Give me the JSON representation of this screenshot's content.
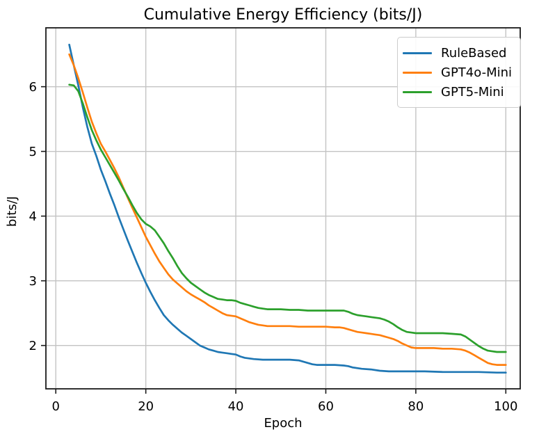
{
  "figure": {
    "background": "#ffffff",
    "grid_color": "#c3c3c3",
    "spine_color": "#1a1a1a",
    "text_color": "#000000",
    "legend_border_color": "#cccccc"
  },
  "chart_data": {
    "type": "line",
    "title": "Cumulative Energy Efficiency (bits/J)",
    "xlabel": "Epoch",
    "ylabel": "bits/J",
    "xlim": [
      -2.2,
      103.2
    ],
    "ylim": [
      1.33,
      6.91
    ],
    "xticks": [
      0,
      20,
      40,
      60,
      80,
      100
    ],
    "yticks": [
      2,
      3,
      4,
      5,
      6
    ],
    "grid": true,
    "legend_position": "upper right",
    "series": [
      {
        "name": "RuleBased",
        "color": "#1f77b4",
        "points": [
          [
            3,
            6.65
          ],
          [
            4,
            6.33
          ],
          [
            5,
            6.02
          ],
          [
            6,
            5.68
          ],
          [
            7,
            5.38
          ],
          [
            8,
            5.12
          ],
          [
            9,
            4.93
          ],
          [
            10,
            4.72
          ],
          [
            11,
            4.54
          ],
          [
            12,
            4.35
          ],
          [
            13,
            4.17
          ],
          [
            14,
            3.98
          ],
          [
            15,
            3.8
          ],
          [
            16,
            3.62
          ],
          [
            17,
            3.45
          ],
          [
            18,
            3.28
          ],
          [
            19,
            3.12
          ],
          [
            20,
            2.97
          ],
          [
            21,
            2.83
          ],
          [
            22,
            2.7
          ],
          [
            23,
            2.58
          ],
          [
            24,
            2.47
          ],
          [
            25,
            2.39
          ],
          [
            26,
            2.32
          ],
          [
            27,
            2.26
          ],
          [
            28,
            2.2
          ],
          [
            29,
            2.15
          ],
          [
            30,
            2.1
          ],
          [
            31,
            2.05
          ],
          [
            32,
            2.0
          ],
          [
            33,
            1.97
          ],
          [
            34,
            1.94
          ],
          [
            35,
            1.92
          ],
          [
            36,
            1.9
          ],
          [
            37,
            1.89
          ],
          [
            38,
            1.88
          ],
          [
            39,
            1.87
          ],
          [
            40,
            1.86
          ],
          [
            41,
            1.83
          ],
          [
            42,
            1.81
          ],
          [
            43,
            1.8
          ],
          [
            44,
            1.79
          ],
          [
            46,
            1.78
          ],
          [
            48,
            1.78
          ],
          [
            50,
            1.78
          ],
          [
            52,
            1.78
          ],
          [
            54,
            1.77
          ],
          [
            55,
            1.75
          ],
          [
            56,
            1.73
          ],
          [
            57,
            1.71
          ],
          [
            58,
            1.7
          ],
          [
            60,
            1.7
          ],
          [
            62,
            1.7
          ],
          [
            64,
            1.69
          ],
          [
            65,
            1.68
          ],
          [
            66,
            1.66
          ],
          [
            68,
            1.64
          ],
          [
            70,
            1.63
          ],
          [
            72,
            1.61
          ],
          [
            74,
            1.6
          ],
          [
            78,
            1.6
          ],
          [
            82,
            1.6
          ],
          [
            86,
            1.59
          ],
          [
            90,
            1.59
          ],
          [
            94,
            1.59
          ],
          [
            98,
            1.58
          ],
          [
            100,
            1.58
          ]
        ]
      },
      {
        "name": "GPT4o-Mini",
        "color": "#ff7f0e",
        "points": [
          [
            3,
            6.5
          ],
          [
            4,
            6.33
          ],
          [
            5,
            6.13
          ],
          [
            6,
            5.91
          ],
          [
            7,
            5.68
          ],
          [
            8,
            5.46
          ],
          [
            9,
            5.28
          ],
          [
            10,
            5.12
          ],
          [
            11,
            5.0
          ],
          [
            12,
            4.87
          ],
          [
            13,
            4.74
          ],
          [
            14,
            4.6
          ],
          [
            15,
            4.44
          ],
          [
            16,
            4.28
          ],
          [
            17,
            4.13
          ],
          [
            18,
            3.98
          ],
          [
            19,
            3.83
          ],
          [
            20,
            3.68
          ],
          [
            21,
            3.55
          ],
          [
            22,
            3.42
          ],
          [
            23,
            3.3
          ],
          [
            24,
            3.2
          ],
          [
            25,
            3.1
          ],
          [
            26,
            3.02
          ],
          [
            27,
            2.96
          ],
          [
            28,
            2.9
          ],
          [
            29,
            2.84
          ],
          [
            30,
            2.79
          ],
          [
            31,
            2.75
          ],
          [
            32,
            2.71
          ],
          [
            33,
            2.67
          ],
          [
            34,
            2.62
          ],
          [
            35,
            2.58
          ],
          [
            36,
            2.54
          ],
          [
            37,
            2.5
          ],
          [
            38,
            2.47
          ],
          [
            39,
            2.46
          ],
          [
            40,
            2.45
          ],
          [
            41,
            2.42
          ],
          [
            42,
            2.39
          ],
          [
            43,
            2.36
          ],
          [
            44,
            2.34
          ],
          [
            45,
            2.32
          ],
          [
            46,
            2.31
          ],
          [
            47,
            2.3
          ],
          [
            48,
            2.3
          ],
          [
            50,
            2.3
          ],
          [
            52,
            2.3
          ],
          [
            54,
            2.29
          ],
          [
            56,
            2.29
          ],
          [
            58,
            2.29
          ],
          [
            60,
            2.29
          ],
          [
            62,
            2.28
          ],
          [
            63,
            2.28
          ],
          [
            64,
            2.27
          ],
          [
            65,
            2.25
          ],
          [
            66,
            2.23
          ],
          [
            67,
            2.21
          ],
          [
            68,
            2.2
          ],
          [
            69,
            2.19
          ],
          [
            70,
            2.18
          ],
          [
            71,
            2.17
          ],
          [
            72,
            2.16
          ],
          [
            73,
            2.14
          ],
          [
            74,
            2.12
          ],
          [
            75,
            2.1
          ],
          [
            76,
            2.07
          ],
          [
            77,
            2.03
          ],
          [
            78,
            2.0
          ],
          [
            79,
            1.97
          ],
          [
            80,
            1.96
          ],
          [
            82,
            1.96
          ],
          [
            84,
            1.96
          ],
          [
            86,
            1.95
          ],
          [
            88,
            1.95
          ],
          [
            90,
            1.94
          ],
          [
            91,
            1.92
          ],
          [
            92,
            1.89
          ],
          [
            93,
            1.85
          ],
          [
            94,
            1.81
          ],
          [
            95,
            1.77
          ],
          [
            96,
            1.73
          ],
          [
            97,
            1.71
          ],
          [
            98,
            1.7
          ],
          [
            100,
            1.7
          ]
        ]
      },
      {
        "name": "GPT5-Mini",
        "color": "#2ca02c",
        "points": [
          [
            3,
            6.03
          ],
          [
            4,
            6.02
          ],
          [
            5,
            5.93
          ],
          [
            6,
            5.74
          ],
          [
            7,
            5.53
          ],
          [
            8,
            5.33
          ],
          [
            9,
            5.17
          ],
          [
            10,
            5.03
          ],
          [
            11,
            4.91
          ],
          [
            12,
            4.79
          ],
          [
            13,
            4.67
          ],
          [
            14,
            4.55
          ],
          [
            15,
            4.42
          ],
          [
            16,
            4.3
          ],
          [
            17,
            4.17
          ],
          [
            18,
            4.05
          ],
          [
            19,
            3.95
          ],
          [
            20,
            3.88
          ],
          [
            21,
            3.84
          ],
          [
            22,
            3.78
          ],
          [
            23,
            3.68
          ],
          [
            24,
            3.58
          ],
          [
            25,
            3.46
          ],
          [
            26,
            3.35
          ],
          [
            27,
            3.23
          ],
          [
            28,
            3.12
          ],
          [
            29,
            3.04
          ],
          [
            30,
            2.97
          ],
          [
            31,
            2.92
          ],
          [
            32,
            2.87
          ],
          [
            33,
            2.82
          ],
          [
            34,
            2.78
          ],
          [
            35,
            2.75
          ],
          [
            36,
            2.72
          ],
          [
            37,
            2.71
          ],
          [
            38,
            2.7
          ],
          [
            39,
            2.7
          ],
          [
            40,
            2.69
          ],
          [
            41,
            2.66
          ],
          [
            42,
            2.64
          ],
          [
            43,
            2.62
          ],
          [
            44,
            2.6
          ],
          [
            45,
            2.58
          ],
          [
            46,
            2.57
          ],
          [
            47,
            2.56
          ],
          [
            48,
            2.56
          ],
          [
            50,
            2.56
          ],
          [
            52,
            2.55
          ],
          [
            54,
            2.55
          ],
          [
            56,
            2.54
          ],
          [
            58,
            2.54
          ],
          [
            60,
            2.54
          ],
          [
            62,
            2.54
          ],
          [
            64,
            2.54
          ],
          [
            65,
            2.52
          ],
          [
            66,
            2.49
          ],
          [
            67,
            2.47
          ],
          [
            68,
            2.46
          ],
          [
            69,
            2.45
          ],
          [
            70,
            2.44
          ],
          [
            71,
            2.43
          ],
          [
            72,
            2.42
          ],
          [
            73,
            2.4
          ],
          [
            74,
            2.37
          ],
          [
            75,
            2.33
          ],
          [
            76,
            2.28
          ],
          [
            77,
            2.24
          ],
          [
            78,
            2.21
          ],
          [
            79,
            2.2
          ],
          [
            80,
            2.19
          ],
          [
            82,
            2.19
          ],
          [
            84,
            2.19
          ],
          [
            86,
            2.19
          ],
          [
            88,
            2.18
          ],
          [
            90,
            2.17
          ],
          [
            91,
            2.14
          ],
          [
            92,
            2.09
          ],
          [
            93,
            2.04
          ],
          [
            94,
            1.99
          ],
          [
            95,
            1.95
          ],
          [
            96,
            1.92
          ],
          [
            97,
            1.91
          ],
          [
            98,
            1.9
          ],
          [
            100,
            1.9
          ]
        ]
      }
    ]
  }
}
